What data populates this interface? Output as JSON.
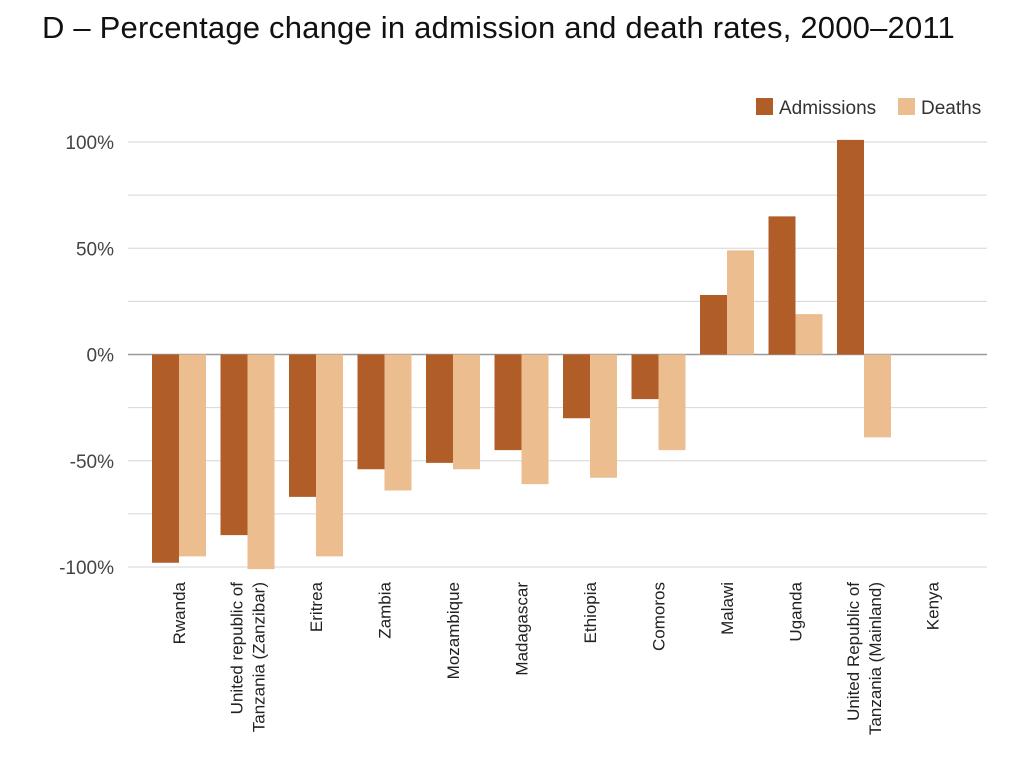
{
  "chart_data": {
    "type": "bar",
    "title": "D –  Percentage change in admission and death rates, 2000–2011",
    "xlabel": "",
    "ylabel": "",
    "ylim": [
      -100,
      100
    ],
    "yticks": [
      100,
      50,
      0,
      -50,
      -100
    ],
    "ytick_labels": [
      "100%",
      "50%",
      "0%",
      "-50%",
      "-100%"
    ],
    "grid": true,
    "legend_position": "top-right",
    "categories": [
      [
        "Rwanda"
      ],
      [
        "United republic of",
        "Tanzania (Zanzibar)"
      ],
      [
        "Eritrea"
      ],
      [
        "Zambia"
      ],
      [
        "Mozambique"
      ],
      [
        "Madagascar"
      ],
      [
        "Ethiopia"
      ],
      [
        "Comoros"
      ],
      [
        "Malawi"
      ],
      [
        "Uganda"
      ],
      [
        "United Republic of",
        "Tanzania (Mainland)"
      ],
      [
        "Kenya"
      ]
    ],
    "series": [
      {
        "name": "Admissions",
        "color": "#b05d28",
        "values": [
          -98,
          -85,
          -67,
          -54,
          -51,
          -45,
          -30,
          -21,
          28,
          65,
          101,
          0
        ]
      },
      {
        "name": "Deaths",
        "color": "#ebbd8f",
        "values": [
          -95,
          -101,
          -95,
          -64,
          -54,
          -61,
          -58,
          -45,
          49,
          19,
          -39,
          0
        ]
      }
    ]
  }
}
